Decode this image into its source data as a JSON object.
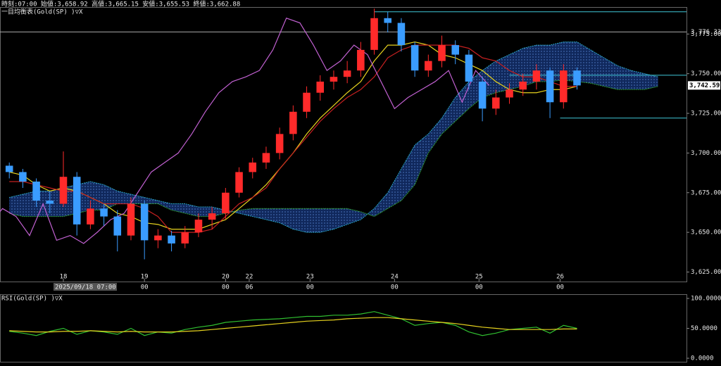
{
  "header": {
    "info": "時刻:07:00 始値:3,658.92 高値:3,665.15 安値:3,655.53 終値:3,662.88"
  },
  "chart_data": [
    {
      "type": "candlestick",
      "title": "一目均衡表(Gold(SP) )▽X",
      "x": [
        -16,
        -12,
        -8,
        -4,
        0,
        4,
        8,
        12,
        16,
        20,
        24,
        28,
        32,
        36,
        40,
        44,
        48,
        52,
        56,
        60,
        64,
        68,
        72,
        76,
        80,
        84,
        88,
        92,
        96,
        100,
        104,
        108,
        112,
        116,
        120,
        124,
        128,
        132,
        136,
        140,
        144,
        148,
        152
      ],
      "open": [
        3692,
        3688,
        3682,
        3670,
        3668,
        3685,
        3655,
        3665,
        3660,
        3648,
        3668,
        3645,
        3648,
        3643,
        3650,
        3658,
        3662,
        3675,
        3688,
        3694,
        3700,
        3712,
        3726,
        3738,
        3745,
        3748,
        3752,
        3765,
        3785,
        3782,
        3768,
        3752,
        3758,
        3768,
        3762,
        3745,
        3728,
        3735,
        3740,
        3745,
        3752,
        3732,
        3752
      ],
      "high": [
        3694,
        3690,
        3684,
        3676,
        3701,
        3688,
        3670,
        3668,
        3664,
        3672,
        3670,
        3652,
        3651,
        3654,
        3662,
        3666,
        3678,
        3691,
        3697,
        3704,
        3716,
        3730,
        3742,
        3749,
        3752,
        3758,
        3770,
        3791,
        3789,
        3785,
        3770,
        3762,
        3774,
        3771,
        3765,
        3748,
        3740,
        3744,
        3750,
        3756,
        3754,
        3756,
        3754
      ],
      "low": [
        3684,
        3678,
        3666,
        3662,
        3666,
        3648,
        3652,
        3654,
        3638,
        3645,
        3633,
        3640,
        3638,
        3640,
        3647,
        3652,
        3658,
        3672,
        3684,
        3690,
        3696,
        3708,
        3722,
        3733,
        3740,
        3744,
        3748,
        3762,
        3776,
        3764,
        3748,
        3748,
        3754,
        3756,
        3740,
        3720,
        3724,
        3731,
        3736,
        3740,
        3722,
        3728,
        3740
      ],
      "close": [
        3688,
        3682,
        3670,
        3668,
        3685,
        3655,
        3665,
        3660,
        3648,
        3668,
        3645,
        3648,
        3643,
        3650,
        3658,
        3662,
        3675,
        3688,
        3694,
        3700,
        3712,
        3726,
        3738,
        3745,
        3748,
        3752,
        3765,
        3785,
        3782,
        3768,
        3752,
        3758,
        3768,
        3762,
        3745,
        3728,
        3735,
        3740,
        3745,
        3752,
        3732,
        3752,
        3742.59
      ],
      "up_color": "#ff2a2a",
      "down_color": "#3a9cff",
      "series": [
        {
          "color": "#e6d21e",
          "values": [
            3688,
            3686,
            3680,
            3676,
            3678,
            3676,
            3672,
            3668,
            3662,
            3660,
            3656,
            3655,
            3652,
            3652,
            3652,
            3655,
            3658,
            3665,
            3672,
            3680,
            3690,
            3700,
            3712,
            3722,
            3730,
            3738,
            3745,
            3758,
            3768,
            3768,
            3770,
            3768,
            3762,
            3760,
            3756,
            3752,
            3745,
            3740,
            3738,
            3738,
            3740,
            3740,
            3742
          ]
        },
        {
          "color": "#c42020",
          "values": [
            3682,
            3682,
            3680,
            3678,
            3676,
            3676,
            3672,
            3668,
            3668,
            3668,
            3665,
            3660,
            3650,
            3650,
            3650,
            3652,
            3660,
            3668,
            3672,
            3678,
            3690,
            3700,
            3710,
            3720,
            3728,
            3735,
            3740,
            3748,
            3760,
            3765,
            3768,
            3768,
            3768,
            3768,
            3766,
            3760,
            3758,
            3752,
            3748,
            3748,
            3745,
            3742,
            3742
          ]
        },
        {
          "color": "#c060d0",
          "shift": -26,
          "values": [
            3688,
            3682,
            3670,
            3668,
            3685,
            3655,
            3665,
            3660,
            3648,
            3668,
            3645,
            3648,
            3643,
            3650,
            3658,
            3662,
            3675,
            3688,
            3694,
            3700,
            3712,
            3726,
            3738,
            3745,
            3748,
            3752,
            3765,
            3785,
            3782,
            3768,
            3752,
            3758,
            3768,
            3762,
            3745,
            3728,
            3735,
            3740,
            3745,
            3752,
            3732,
            3752,
            3742.59
          ]
        }
      ],
      "cloud": {
        "x": [
          -16,
          -12,
          -8,
          -4,
          0,
          4,
          8,
          12,
          16,
          20,
          24,
          28,
          32,
          36,
          40,
          44,
          48,
          52,
          56,
          60,
          64,
          68,
          72,
          76,
          80,
          84,
          88,
          92,
          96,
          100,
          104,
          108,
          112,
          116,
          120,
          124,
          128,
          132,
          136,
          140,
          144,
          148,
          152,
          156,
          160,
          164,
          168,
          172,
          176
        ],
        "fill": "#10285c",
        "span_a": {
          "color": "#2aa8c8",
          "values": [
            3672,
            3674,
            3676,
            3676,
            3678,
            3680,
            3682,
            3680,
            3676,
            3674,
            3672,
            3670,
            3668,
            3668,
            3666,
            3666,
            3664,
            3662,
            3660,
            3658,
            3656,
            3652,
            3650,
            3650,
            3652,
            3655,
            3658,
            3665,
            3675,
            3690,
            3705,
            3712,
            3722,
            3735,
            3745,
            3752,
            3758,
            3762,
            3766,
            3768,
            3768,
            3770,
            3770,
            3765,
            3760,
            3755,
            3752,
            3750,
            3748
          ]
        },
        "span_b": {
          "color": "#30a030",
          "values": [
            3662,
            3660,
            3660,
            3660,
            3660,
            3662,
            3664,
            3664,
            3668,
            3668,
            3668,
            3668,
            3664,
            3662,
            3660,
            3660,
            3662,
            3664,
            3665,
            3665,
            3665,
            3665,
            3665,
            3665,
            3665,
            3665,
            3663,
            3660,
            3665,
            3670,
            3680,
            3700,
            3712,
            3720,
            3728,
            3735,
            3738,
            3740,
            3742,
            3745,
            3745,
            3746,
            3745,
            3744,
            3742,
            3740,
            3740,
            3740,
            3742
          ]
        }
      },
      "levels": [
        {
          "value": 3789,
          "from": 92
        },
        {
          "value": 3749,
          "from": 132
        },
        {
          "value": 3722,
          "from": 147
        }
      ],
      "level_color": "#40c8d8",
      "price_line": {
        "value": 3776.33,
        "label": "3,776.33"
      },
      "last": {
        "value": 3742.59,
        "label": "3,742.59"
      },
      "cursor_label": "2025/09/18 07:00",
      "xlim": [
        -18.75,
        184.4
      ],
      "ylim": [
        3619,
        3792
      ],
      "xticks": [
        {
          "value": 0,
          "label": "18"
        },
        {
          "value": 24,
          "label": "19"
        },
        {
          "value": 48,
          "label": "20"
        },
        {
          "value": 55,
          "label": "22"
        },
        {
          "value": 73,
          "label": "23"
        },
        {
          "value": 98,
          "label": "24"
        },
        {
          "value": 123,
          "label": "25"
        },
        {
          "value": 147,
          "label": "26"
        }
      ],
      "xticks2": [
        {
          "value": 24,
          "label": "00"
        },
        {
          "value": 48,
          "label": "00"
        },
        {
          "value": 55,
          "label": "06"
        },
        {
          "value": 73,
          "label": "00"
        },
        {
          "value": 98,
          "label": "00"
        },
        {
          "value": 123,
          "label": "00"
        },
        {
          "value": 147,
          "label": "00"
        }
      ],
      "yticks": [
        {
          "value": 3625,
          "label": "3,625.00"
        },
        {
          "value": 3650,
          "label": "3,650.00"
        },
        {
          "value": 3675,
          "label": "3,675.00"
        },
        {
          "value": 3700,
          "label": "3,700.00"
        },
        {
          "value": 3725,
          "label": "3,725.00"
        },
        {
          "value": 3750,
          "label": "3,750.00"
        },
        {
          "value": 3775,
          "label": "3,775.00"
        }
      ]
    },
    {
      "type": "line",
      "title": "RSI(Gold(SP) )▽X",
      "x": [
        -16,
        -12,
        -8,
        -4,
        0,
        4,
        8,
        12,
        16,
        20,
        24,
        28,
        32,
        36,
        40,
        44,
        48,
        52,
        56,
        60,
        64,
        68,
        72,
        76,
        80,
        84,
        88,
        92,
        96,
        100,
        104,
        108,
        112,
        116,
        120,
        124,
        128,
        132,
        136,
        140,
        144,
        148,
        152
      ],
      "series": [
        {
          "color": "#30c030",
          "values": [
            45,
            42,
            38,
            45,
            50,
            40,
            46,
            44,
            40,
            50,
            38,
            44,
            42,
            48,
            52,
            55,
            60,
            62,
            64,
            65,
            66,
            68,
            70,
            70,
            72,
            72,
            74,
            78,
            72,
            66,
            55,
            58,
            60,
            55,
            44,
            38,
            42,
            48,
            50,
            52,
            42,
            55,
            50
          ]
        },
        {
          "color": "#e6d21e",
          "values": [
            46,
            45,
            44,
            44,
            45,
            45,
            46,
            45,
            44,
            45,
            44,
            44,
            44,
            45,
            46,
            48,
            50,
            52,
            54,
            56,
            58,
            60,
            62,
            63,
            64,
            66,
            67,
            68,
            68,
            66,
            64,
            62,
            60,
            58,
            55,
            52,
            50,
            48,
            48,
            48,
            48,
            49,
            49
          ]
        }
      ],
      "xlim": [
        -18.75,
        184.4
      ],
      "ylim": [
        0,
        100
      ],
      "yticks": [
        {
          "value": 0,
          "label": "0.0000"
        },
        {
          "value": 50,
          "label": "50.0000"
        },
        {
          "value": 100,
          "label": "100.0000"
        }
      ]
    }
  ]
}
